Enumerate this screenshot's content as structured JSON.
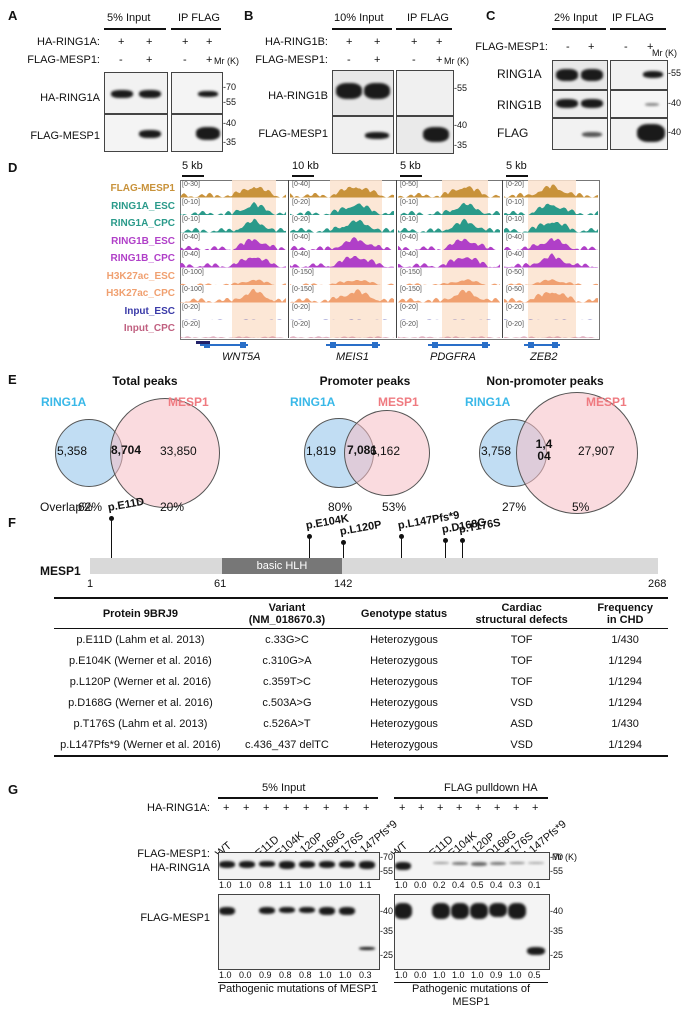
{
  "panels": {
    "A": {
      "letter": "A",
      "headers": [
        "5% Input",
        "IP FLAG"
      ],
      "rows": [
        {
          "label": "HA-RING1A:",
          "signs": [
            "+",
            "+",
            "+",
            "+"
          ]
        },
        {
          "label": "FLAG-MESP1:",
          "signs": [
            "-",
            "+",
            "-",
            "+"
          ]
        }
      ],
      "mr": "Mr (K)",
      "blots": [
        "HA-RING1A",
        "FLAG-MESP1"
      ],
      "markers": [
        "-70",
        "-55",
        "-40",
        "-35"
      ]
    },
    "B": {
      "letter": "B",
      "headers": [
        "10% Input",
        "IP FLAG"
      ],
      "rows": [
        {
          "label": "HA-RING1B:",
          "signs": [
            "+",
            "+",
            "+",
            "+"
          ]
        },
        {
          "label": "FLAG-MESP1:",
          "signs": [
            "-",
            "+",
            "-",
            "+"
          ]
        }
      ],
      "mr": "Mr (K)",
      "blots": [
        "HA-RING1B",
        "FLAG-MESP1"
      ],
      "markers": [
        "-55",
        "-40",
        "-35"
      ]
    },
    "C": {
      "letter": "C",
      "headers": [
        "2% Input",
        "IP FLAG"
      ],
      "rows": [
        {
          "label": "FLAG-MESP1:",
          "signs": [
            "-",
            "+",
            "-",
            "+"
          ]
        }
      ],
      "mr": "Mr (K)",
      "blots": [
        "RING1A",
        "RING1B",
        "FLAG"
      ],
      "markers": [
        "-55",
        "-40",
        "-40"
      ]
    },
    "D": {
      "letter": "D",
      "scales": [
        "5 kb",
        "10 kb",
        "5 kb",
        "5 kb"
      ],
      "tracks": [
        {
          "name": "FLAG-MESP1",
          "color": "#c8923a"
        },
        {
          "name": "RING1A_ESC",
          "color": "#2a9a8a"
        },
        {
          "name": "RING1A_CPC",
          "color": "#2a9a8a"
        },
        {
          "name": "RING1B_ESC",
          "color": "#b03fc8"
        },
        {
          "name": "RING1B_CPC",
          "color": "#b03fc8"
        },
        {
          "name": "H3K27ac_ESC",
          "color": "#f0a070"
        },
        {
          "name": "H3K27ac_CPC",
          "color": "#f0a070"
        },
        {
          "name": "Input_ESC",
          "color": "#3a3aa8"
        },
        {
          "name": "Input_CPC",
          "color": "#c06080"
        }
      ],
      "ranges": [
        [
          "[0-30]",
          "[0-10]",
          "[0-10]",
          "[0-40]",
          "[0-40]",
          "[0-100]",
          "[0-100]",
          "[0-20]",
          "[0-20]"
        ],
        [
          "[0-40]",
          "[0-20]",
          "[0-20]",
          "[0-40]",
          "[0-40]",
          "[0-150]",
          "[0-150]",
          "[0-20]",
          "[0-20]"
        ],
        [
          "[0-50]",
          "[0-10]",
          "[0-10]",
          "[0-40]",
          "[0-40]",
          "[0-150]",
          "[0-150]",
          "[0-20]",
          "[0-20]"
        ],
        [
          "[0-20]",
          "[0-10]",
          "[0-10]",
          "[0-40]",
          "[0-40]",
          "[0-50]",
          "[0-50]",
          "[0-20]",
          "[0-20]"
        ]
      ],
      "genes": [
        "WNT5A",
        "MEIS1",
        "PDGFRA",
        "ZEB2"
      ]
    },
    "E": {
      "letter": "E",
      "venns": [
        {
          "title": "Total peaks",
          "a": "RING1A",
          "b": "MESP1",
          "left": "5,358",
          "mid": "8,704",
          "right": "33,850",
          "pctA": "62%",
          "pctB": "20%"
        },
        {
          "title": "Promoter peaks",
          "a": "RING1A",
          "b": "MESP1",
          "left": "1,819",
          "mid": "7,081",
          "right": "6,162",
          "pctA": "80%",
          "pctB": "53%"
        },
        {
          "title": "Non-promoter peaks",
          "a": "RING1A",
          "b": "MESP1",
          "left": "3,758",
          "mid": "1,4\n04",
          "right": "27,907",
          "pctA": "27%",
          "pctB": "5%"
        }
      ],
      "overlap_label": "Overlap%"
    },
    "F": {
      "letter": "F",
      "protein": "MESP1",
      "domain": "basic HLH",
      "positions": [
        "1",
        "61",
        "142",
        "268"
      ],
      "mutations": [
        "p.E11D",
        "p.E104K",
        "p.L120P",
        "p.L147Pfs*9",
        "p.D168G",
        "p.T176S"
      ],
      "table": {
        "headers": [
          "Protein 9BRJ9",
          "Variant\n(NM_018670.3)",
          "Genotype status",
          "Cardiac\nstructural defects",
          "Frequency\nin CHD"
        ],
        "rows": [
          [
            "p.E11D (Lahm et al. 2013)",
            "c.33G>C",
            "Heterozygous",
            "TOF",
            "1/430"
          ],
          [
            "p.E104K (Werner et al. 2016)",
            "c.310G>A",
            "Heterozygous",
            "TOF",
            "1/1294"
          ],
          [
            "p.L120P (Werner et al. 2016)",
            "c.359T>C",
            "Heterozygous",
            "TOF",
            "1/1294"
          ],
          [
            "p.D168G (Werner et al. 2016)",
            "c.503A>G",
            "Heterozygous",
            "VSD",
            "1/1294"
          ],
          [
            "p.T176S (Lahm et al. 2013)",
            "c.526A>T",
            "Heterozygous",
            "ASD",
            "1/430"
          ],
          [
            "p.L147Pfs*9 (Werner et al. 2016)",
            "c.436_437 delTC",
            "Heterozygous",
            "VSD",
            "1/1294"
          ]
        ]
      }
    },
    "G": {
      "letter": "G",
      "headers": [
        "5% Input",
        "FLAG pulldown HA"
      ],
      "ring_label": "HA-RING1A:",
      "mesp_label": "FLAG-MESP1:",
      "lanes": [
        "WT",
        "-",
        "E11D",
        "E104K",
        "L120P",
        "D168G",
        "T176S",
        "L147Pfs*9"
      ],
      "blots": [
        "HA-RING1A",
        "FLAG-MESP1"
      ],
      "markers_top": [
        "-70",
        "-55"
      ],
      "markers_bottom": [
        "-40",
        "-35",
        "-25"
      ],
      "mr": "Mr (K)",
      "quant_input_ha": [
        "1.0",
        "1.0",
        "0.8",
        "1.1",
        "1.0",
        "1.0",
        "1.0",
        "1.1"
      ],
      "quant_pull_ha": [
        "1.0",
        "0.0",
        "0.2",
        "0.4",
        "0.5",
        "0.4",
        "0.3",
        "0.1"
      ],
      "quant_input_flag": [
        "1.0",
        "0.0",
        "0.9",
        "0.8",
        "0.8",
        "1.0",
        "1.0",
        "0.3"
      ],
      "quant_pull_flag": [
        "1.0",
        "0.0",
        "1.0",
        "1.0",
        "1.0",
        "0.9",
        "1.0",
        "0.5"
      ],
      "caption": "Pathogenic mutations of MESP1"
    }
  }
}
